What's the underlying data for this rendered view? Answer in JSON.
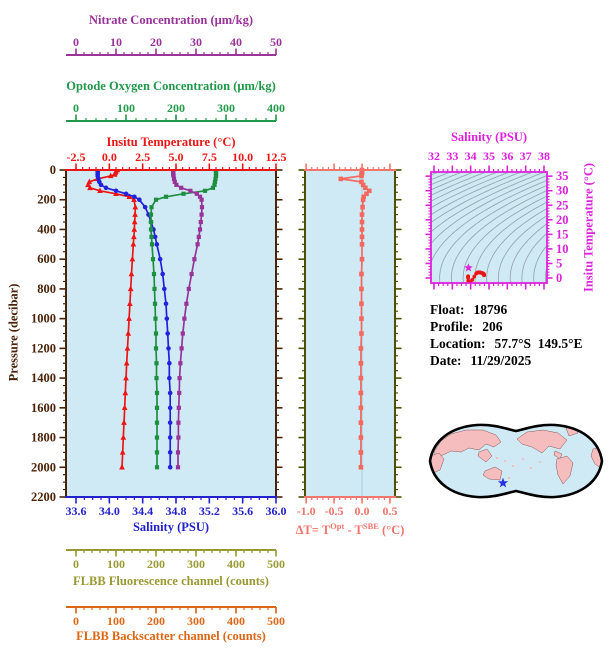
{
  "info": {
    "float_label": "Float:",
    "float_value": "18796",
    "profile_label": "Profile:",
    "profile_value": "206",
    "location_label": "Location:",
    "location_value": "57.7°S  149.5°E",
    "date_label": "Date:",
    "date_value": "11/29/2025"
  },
  "chart_data": {
    "type": "multi-panel-profile",
    "panels": {
      "profile": {
        "type": "line",
        "background": "#cfeaf4",
        "frame_color": "#4a2208",
        "pressure_axis": {
          "label": "Pressure (decibar)",
          "min": 0,
          "max": 2200,
          "major": 200,
          "minor": 50,
          "color": "#4a2208"
        },
        "x_axes": [
          {
            "id": "nitrate",
            "label": "Nitrate Concentration (μm/kg)",
            "min": 0,
            "max": 50,
            "major": 10,
            "minor": 2,
            "decimals": 0,
            "color": "#993399"
          },
          {
            "id": "oxygen",
            "label": "Optode Oxygen Concentration (μm/kg)",
            "min": 0,
            "max": 400,
            "major": 100,
            "minor": 20,
            "decimals": 0,
            "color": "#22994a"
          },
          {
            "id": "temperature",
            "label": "Insitu Temperature (°C)",
            "min": -2.5,
            "max": 12.5,
            "major": 2.5,
            "minor": 0.5,
            "decimals": 1,
            "color": "#ee1515"
          },
          {
            "id": "salinity",
            "label": "Salinity (PSU)",
            "min": 33.6,
            "max": 36.0,
            "major": 0.4,
            "minor": 0.1,
            "decimals": 1,
            "color": "#2222cc"
          },
          {
            "id": "fluorescence",
            "label": "FLBB Fluorescence channel (counts)",
            "min": 0,
            "max": 500,
            "major": 100,
            "minor": 20,
            "decimals": 0,
            "color": "#999933"
          },
          {
            "id": "backscatter",
            "label": "FLBB Backscatter channel (counts)",
            "min": 0,
            "max": 500,
            "major": 100,
            "minor": 20,
            "decimals": 0,
            "color": "#dd6615"
          }
        ],
        "pressure": [
          0,
          10,
          20,
          30,
          40,
          60,
          80,
          100,
          120,
          140,
          160,
          180,
          200,
          250,
          300,
          350,
          400,
          450,
          500,
          600,
          700,
          800,
          900,
          1000,
          1100,
          1200,
          1300,
          1400,
          1500,
          1600,
          1700,
          1800,
          1900,
          2000
        ],
        "series": [
          {
            "name": "Insitu Temperature",
            "axis": "temperature",
            "marker": "triangle",
            "color": "#ee1515",
            "values": [
              0.6,
              0.5,
              0.45,
              0.4,
              0.1,
              -0.9,
              -1.5,
              -1.6,
              -1.45,
              -0.7,
              0.5,
              1.5,
              1.85,
              1.95,
              1.93,
              1.9,
              1.87,
              1.84,
              1.8,
              1.73,
              1.66,
              1.6,
              1.54,
              1.48,
              1.42,
              1.36,
              1.3,
              1.25,
              1.2,
              1.15,
              1.1,
              1.05,
              1.0,
              0.95
            ]
          },
          {
            "name": "Salinity",
            "axis": "salinity",
            "marker": "circle",
            "color": "#2222dd",
            "values": [
              33.86,
              33.86,
              33.86,
              33.86,
              33.86,
              33.87,
              33.88,
              33.9,
              33.96,
              34.08,
              34.2,
              34.3,
              34.36,
              34.43,
              34.47,
              34.5,
              34.53,
              34.55,
              34.57,
              34.61,
              34.64,
              34.66,
              34.68,
              34.69,
              34.7,
              34.71,
              34.72,
              34.72,
              34.73,
              34.73,
              34.73,
              34.73,
              34.73,
              34.73
            ]
          },
          {
            "name": "Optode Oxygen",
            "axis": "oxygen",
            "marker": "square",
            "color": "#1d8f3f",
            "values": [
              280,
              280,
              280,
              280,
              280,
              279,
              278,
              277,
              274,
              258,
              215,
              180,
              160,
              151,
              150,
              150,
              150,
              151,
              152,
              154,
              156,
              157,
              158,
              159,
              160,
              160,
              161,
              161,
              162,
              162,
              162,
              162,
              162,
              162
            ]
          },
          {
            "name": "Nitrate",
            "axis": "nitrate",
            "marker": "square",
            "color": "#993399",
            "values": [
              24.3,
              24.3,
              24.3,
              24.3,
              24.4,
              24.5,
              24.7,
              25.1,
              26.3,
              28.6,
              30.2,
              31.0,
              31.4,
              31.5,
              31.4,
              31.2,
              31.0,
              30.7,
              30.4,
              29.6,
              28.9,
              28.2,
              27.6,
              27.1,
              26.7,
              26.4,
              26.1,
              25.9,
              25.8,
              25.7,
              25.6,
              25.6,
              25.5,
              25.5
            ]
          }
        ]
      },
      "delta_t": {
        "type": "line",
        "background": "#cfeaf4",
        "border_color": "#4f4f00",
        "x_axis": {
          "min": -1.02,
          "max": 0.59,
          "major": 0.5,
          "minor": 0.1,
          "decimals": 1,
          "color": "#f4756b",
          "label_parts": {
            "p1": "ΔT= T",
            "sup1": "Opt",
            "p2": " - T",
            "sup2": "SBE",
            "p3": " (°C)"
          }
        },
        "series": {
          "name": "ΔT",
          "marker": "square",
          "color": "#f4695f",
          "values": [
            0.0,
            0.0,
            0.0,
            -0.01,
            -0.01,
            -0.38,
            -0.01,
            0.02,
            0.06,
            0.13,
            0.08,
            0.03,
            0.02,
            0.01,
            0.0,
            0.0,
            0.0,
            0.0,
            0.0,
            0.0,
            -0.01,
            -0.01,
            -0.01,
            -0.01,
            -0.01,
            -0.02,
            -0.02,
            -0.02,
            -0.02,
            -0.02,
            -0.02,
            -0.02,
            -0.02,
            -0.02
          ]
        }
      },
      "ts_diagram": {
        "type": "scatter",
        "background": "#cfeaf4",
        "frame_color": "#dd22dd",
        "x_axis": {
          "label": "Salinity (PSU)",
          "min": 32,
          "max": 38,
          "major": 1,
          "minor": 0.25,
          "decimals": 0,
          "color": "#dd22dd"
        },
        "y_axis": {
          "label": "Insitu Temperature (°C)",
          "min": 0,
          "max": 35,
          "major": 5,
          "minor": 1,
          "decimals": 0,
          "color": "#dd22dd"
        },
        "contours": {
          "sigma_min": 20,
          "sigma_max": 31,
          "step": 0.5,
          "color": "#96a8b0"
        },
        "curve": {
          "name": "T-S curve",
          "color": "#ee1515",
          "source": "profile salinity vs temperature"
        },
        "highlight_marker": {
          "color": "#dd22dd",
          "s": 33.88,
          "t": 3.5
        }
      },
      "map": {
        "type": "map",
        "ocean_color": "#cfeaf4",
        "land_color": "#f5bdbd",
        "outline_color": "#000000",
        "marker": {
          "symbol": "star",
          "color": "#2233dd"
        }
      }
    }
  }
}
